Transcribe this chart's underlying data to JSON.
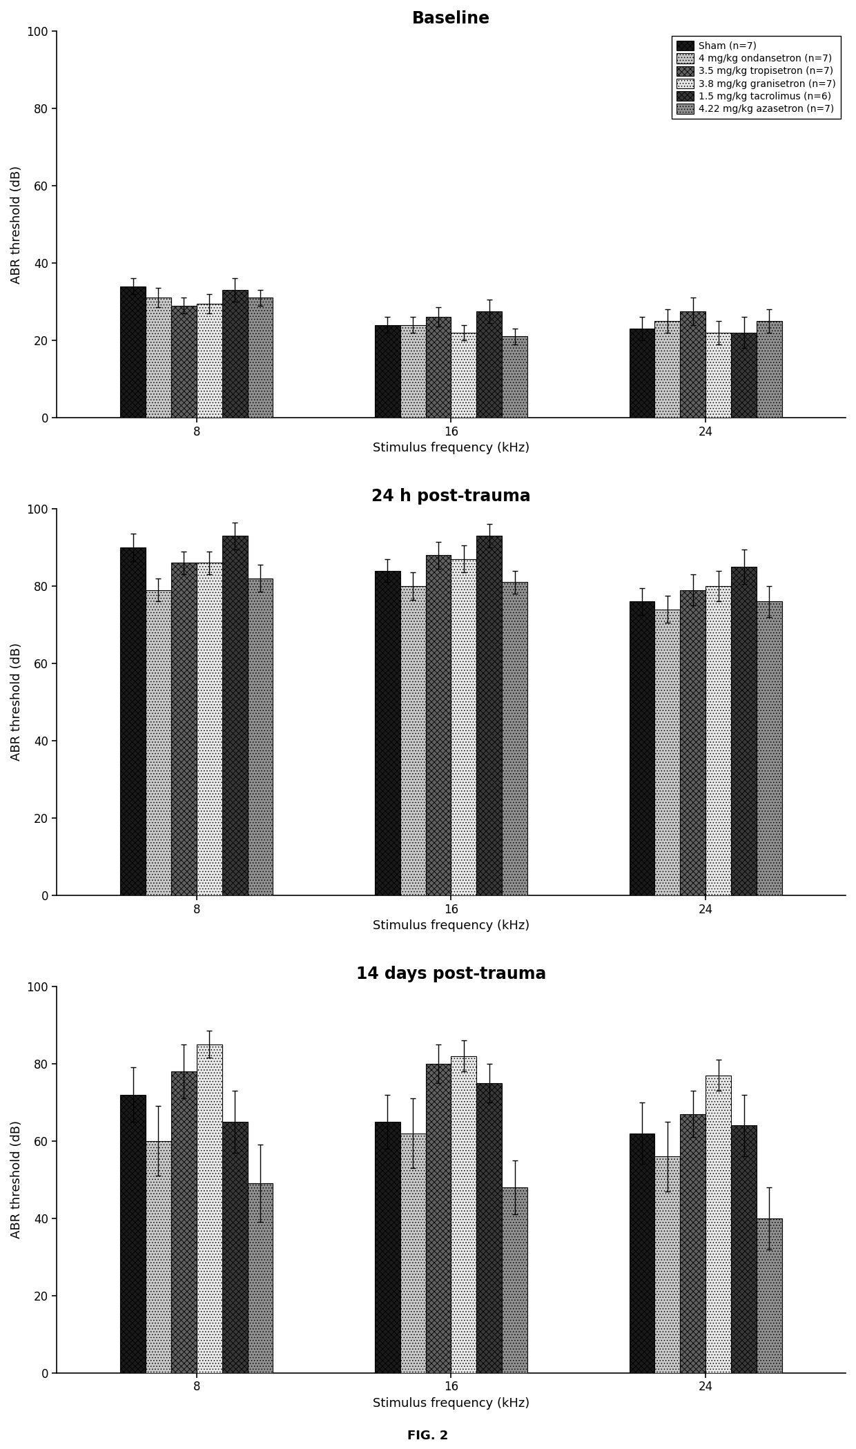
{
  "titles": [
    "Baseline",
    "24 h post-trauma",
    "14 days post-trauma"
  ],
  "xlabel": "Stimulus frequency (kHz)",
  "ylabel": "ABR threshold (dB)",
  "frequencies": [
    "8",
    "16",
    "24"
  ],
  "ylim": [
    0,
    100
  ],
  "yticks": [
    0,
    20,
    40,
    60,
    80,
    100
  ],
  "legend_labels": [
    "Sham (n=7)",
    "4 mg/kg ondansetron (n=7)",
    "3.5 mg/kg tropisetron (n=7)",
    "3.8 mg/kg granisetron (n=7)",
    "1.5 mg/kg tacrolimus (n=6)",
    "4.22 mg/kg azasetron (n=7)"
  ],
  "bar_colors": [
    "#1a1a1a",
    "#c8c8c8",
    "#606060",
    "#e8e8e8",
    "#383838",
    "#909090"
  ],
  "bar_hatch": [
    "xxxx",
    "....",
    "xxxx",
    "....",
    "xxxx",
    "...."
  ],
  "hatch_colors": [
    "#000000",
    "#888888",
    "#333333",
    "#aaaaaa",
    "#111111",
    "#606060"
  ],
  "bar_edge_colors": [
    "#000000",
    "#000000",
    "#000000",
    "#000000",
    "#000000",
    "#000000"
  ],
  "panels": [
    {
      "title": "Baseline",
      "data": [
        [
          34.0,
          31.0,
          29.0,
          29.5,
          33.0,
          31.0
        ],
        [
          24.0,
          24.0,
          26.0,
          22.0,
          27.5,
          21.0
        ],
        [
          23.0,
          25.0,
          27.5,
          22.0,
          22.0,
          25.0
        ]
      ],
      "errors": [
        [
          2.0,
          2.5,
          2.0,
          2.5,
          3.0,
          2.0
        ],
        [
          2.0,
          2.0,
          2.5,
          2.0,
          3.0,
          2.0
        ],
        [
          3.0,
          3.0,
          3.5,
          3.0,
          4.0,
          3.0
        ]
      ]
    },
    {
      "title": "24 h post-trauma",
      "data": [
        [
          90.0,
          79.0,
          86.0,
          86.0,
          93.0,
          82.0
        ],
        [
          84.0,
          80.0,
          88.0,
          87.0,
          93.0,
          81.0
        ],
        [
          76.0,
          74.0,
          79.0,
          80.0,
          85.0,
          76.0
        ]
      ],
      "errors": [
        [
          3.5,
          3.0,
          3.0,
          3.0,
          3.5,
          3.5
        ],
        [
          3.0,
          3.5,
          3.5,
          3.5,
          3.0,
          3.0
        ],
        [
          3.5,
          3.5,
          4.0,
          4.0,
          4.5,
          4.0
        ]
      ]
    },
    {
      "title": "14 days post-trauma",
      "data": [
        [
          72.0,
          60.0,
          78.0,
          85.0,
          65.0,
          49.0
        ],
        [
          65.0,
          62.0,
          80.0,
          82.0,
          75.0,
          48.0
        ],
        [
          62.0,
          56.0,
          67.0,
          77.0,
          64.0,
          40.0
        ]
      ],
      "errors": [
        [
          7.0,
          9.0,
          7.0,
          3.5,
          8.0,
          10.0
        ],
        [
          7.0,
          9.0,
          5.0,
          4.0,
          5.0,
          7.0
        ],
        [
          8.0,
          9.0,
          6.0,
          4.0,
          8.0,
          8.0
        ]
      ]
    }
  ],
  "fig_caption": "FIG. 2",
  "background_color": "#ffffff",
  "title_fontsize": 17,
  "axis_fontsize": 13,
  "tick_fontsize": 12,
  "legend_fontsize": 10,
  "caption_fontsize": 13,
  "bar_width": 0.1,
  "group_centers": [
    1.0,
    2.0,
    3.0
  ],
  "xlim": [
    0.45,
    3.55
  ]
}
